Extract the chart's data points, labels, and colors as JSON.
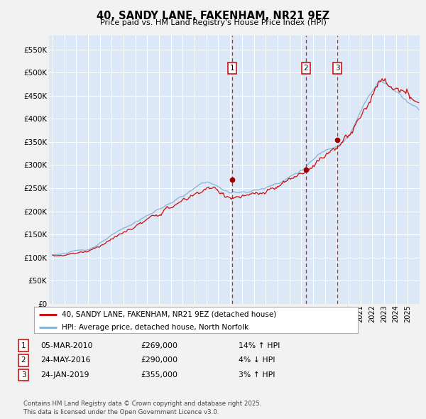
{
  "title": "40, SANDY LANE, FAKENHAM, NR21 9EZ",
  "subtitle": "Price paid vs. HM Land Registry's House Price Index (HPI)",
  "outer_bg_color": "#f0f0f0",
  "plot_bg_color": "#dce8f5",
  "grid_color": "#ffffff",
  "red_line_color": "#cc0000",
  "blue_line_color": "#7bafd4",
  "dashed_line_color": "#cc0000",
  "yticks": [
    0,
    50000,
    100000,
    150000,
    200000,
    250000,
    300000,
    350000,
    400000,
    450000,
    500000,
    550000
  ],
  "ytick_labels": [
    "£0",
    "£50K",
    "£100K",
    "£150K",
    "£200K",
    "£250K",
    "£300K",
    "£350K",
    "£400K",
    "£450K",
    "£500K",
    "£550K"
  ],
  "sale_years": [
    2010.17,
    2016.39,
    2019.06
  ],
  "sale_prices": [
    269000,
    290000,
    355000
  ],
  "sale_labels": [
    "1",
    "2",
    "3"
  ],
  "sale_info": [
    {
      "num": "1",
      "date": "05-MAR-2010",
      "price": "£269,000",
      "pct": "14%",
      "dir": "↑",
      "vs": "HPI"
    },
    {
      "num": "2",
      "date": "24-MAY-2016",
      "price": "£290,000",
      "pct": "4%",
      "dir": "↓",
      "vs": "HPI"
    },
    {
      "num": "3",
      "date": "24-JAN-2019",
      "price": "£355,000",
      "pct": "3%",
      "dir": "↑",
      "vs": "HPI"
    }
  ],
  "legend_red_label": "40, SANDY LANE, FAKENHAM, NR21 9EZ (detached house)",
  "legend_blue_label": "HPI: Average price, detached house, North Norfolk",
  "footer": "Contains HM Land Registry data © Crown copyright and database right 2025.\nThis data is licensed under the Open Government Licence v3.0."
}
